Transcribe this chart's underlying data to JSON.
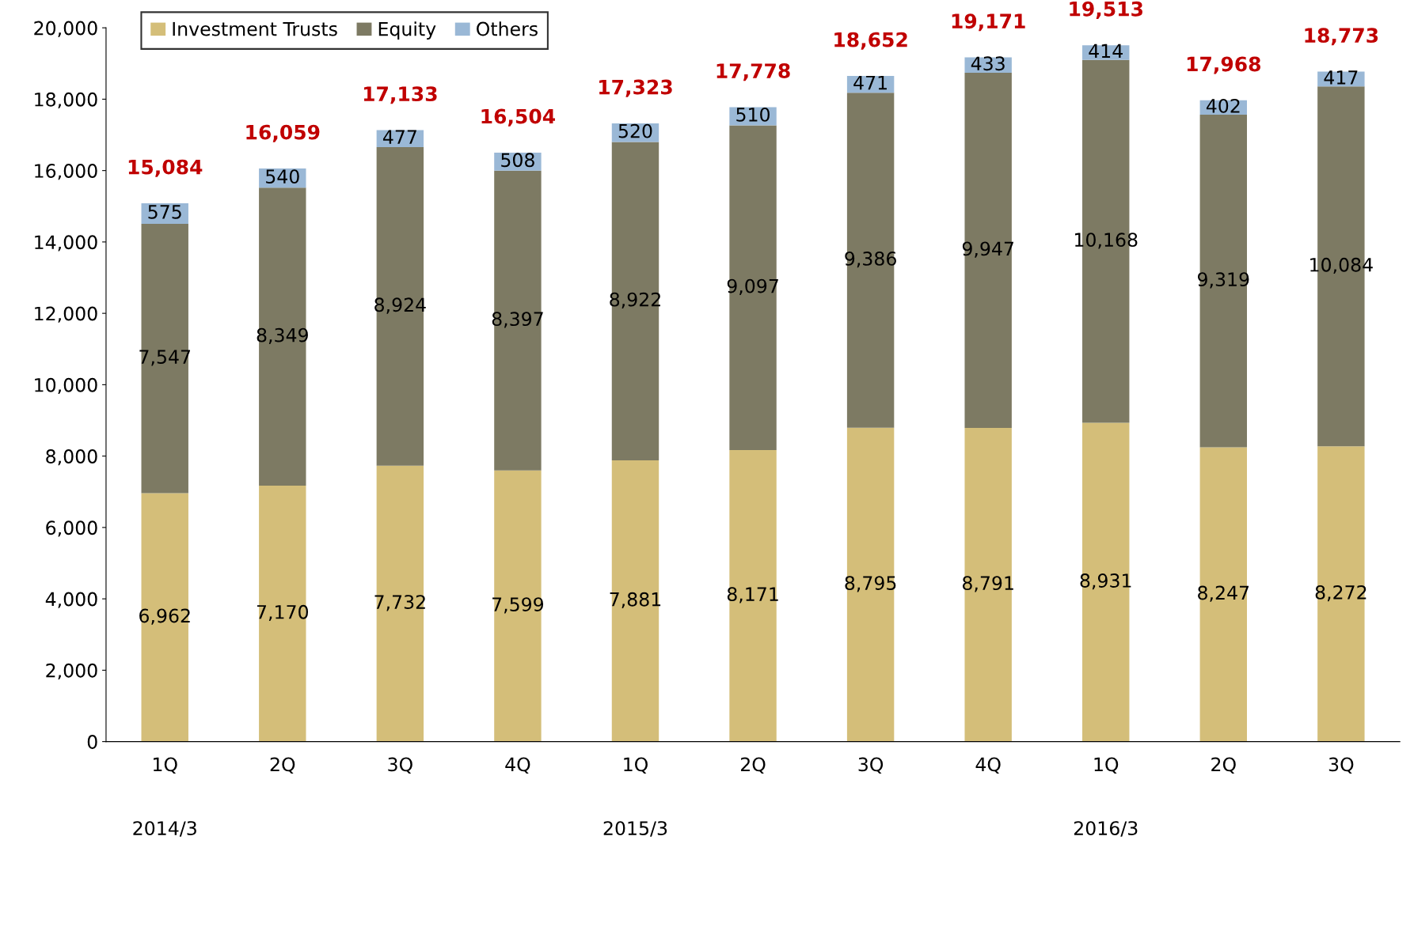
{
  "chart_data": {
    "type": "bar",
    "stacked": true,
    "categories": [
      "1Q",
      "2Q",
      "3Q",
      "4Q",
      "1Q",
      "2Q",
      "3Q",
      "4Q",
      "1Q",
      "2Q",
      "3Q"
    ],
    "series": [
      {
        "name": "Investment Trusts",
        "color": "#d4be79",
        "values": [
          6962,
          7170,
          7732,
          7599,
          7881,
          8171,
          8795,
          8791,
          8931,
          8247,
          8272
        ],
        "value_labels": [
          "6,962",
          "7,170",
          "7,732",
          "7,599",
          "7,881",
          "8,171",
          "8,795",
          "8,791",
          "8,931",
          "8,247",
          "8,272"
        ]
      },
      {
        "name": "Equity",
        "color": "#7d7a63",
        "values": [
          7547,
          8349,
          8924,
          8397,
          8922,
          9097,
          9386,
          9947,
          10168,
          9319,
          10084
        ],
        "value_labels": [
          "7,547",
          "8,349",
          "8,924",
          "8,397",
          "8,922",
          "9,097",
          "9,386",
          "9,947",
          "10,168",
          "9,319",
          "10,084"
        ]
      },
      {
        "name": "Others",
        "color": "#9ab8d6",
        "values": [
          575,
          540,
          477,
          508,
          520,
          510,
          471,
          433,
          414,
          402,
          417
        ],
        "value_labels": [
          "575",
          "540",
          "477",
          "508",
          "520",
          "510",
          "471",
          "433",
          "414",
          "402",
          "417"
        ]
      }
    ],
    "totals": [
      "15,084",
      "16,059",
      "17,133",
      "16,504",
      "17,323",
      "17,778",
      "18,652",
      "19,171",
      "19,513",
      "17,968",
      "18,773"
    ],
    "annotations": [
      "2014/3",
      "2015/3",
      "2016/3"
    ],
    "ylim": [
      0,
      20000
    ],
    "yticks": [
      {
        "value": 0,
        "label": "0"
      },
      {
        "value": 2000,
        "label": "2,000"
      },
      {
        "value": 4000,
        "label": "4,000"
      },
      {
        "value": 6000,
        "label": "6,000"
      },
      {
        "value": 8000,
        "label": "8,000"
      },
      {
        "value": 10000,
        "label": "10,000"
      },
      {
        "value": 12000,
        "label": "12,000"
      },
      {
        "value": 14000,
        "label": "14,000"
      },
      {
        "value": 16000,
        "label": "16,000"
      },
      {
        "value": 18000,
        "label": "18,000"
      },
      {
        "value": 20000,
        "label": "20,000"
      }
    ],
    "grid": false,
    "legend": "top left"
  }
}
